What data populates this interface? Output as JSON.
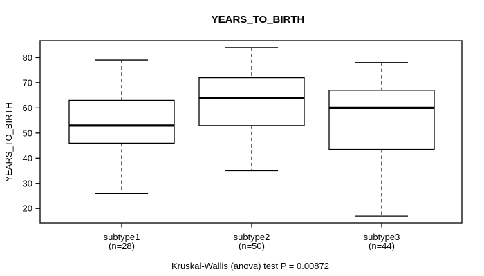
{
  "chart_data": {
    "type": "boxplot",
    "title": "YEARS_TO_BIRTH",
    "ylabel": "YEARS_TO_BIRTH",
    "xlabel": "",
    "ylim": [
      14.3,
      86.7
    ],
    "yticks": [
      20,
      30,
      40,
      50,
      60,
      70,
      80
    ],
    "grid": "off",
    "annotation": "Kruskal-Wallis (anova) test P = 0.00872",
    "groups": [
      {
        "label": "subtype1",
        "sublabel": "(n=28)",
        "n": 28,
        "whisker_low": 26,
        "q1": 46,
        "median": 53,
        "q3": 63,
        "whisker_high": 79
      },
      {
        "label": "subtype2",
        "sublabel": "(n=50)",
        "n": 50,
        "whisker_low": 35,
        "q1": 53,
        "median": 64,
        "q3": 72,
        "whisker_high": 84
      },
      {
        "label": "subtype3",
        "sublabel": "(n=44)",
        "n": 44,
        "whisker_low": 17,
        "q1": 43.5,
        "median": 60,
        "q3": 67,
        "whisker_high": 78
      }
    ],
    "colors": {
      "line": "#000000",
      "box_fill": "#ffffff",
      "background": "#ffffff"
    }
  }
}
